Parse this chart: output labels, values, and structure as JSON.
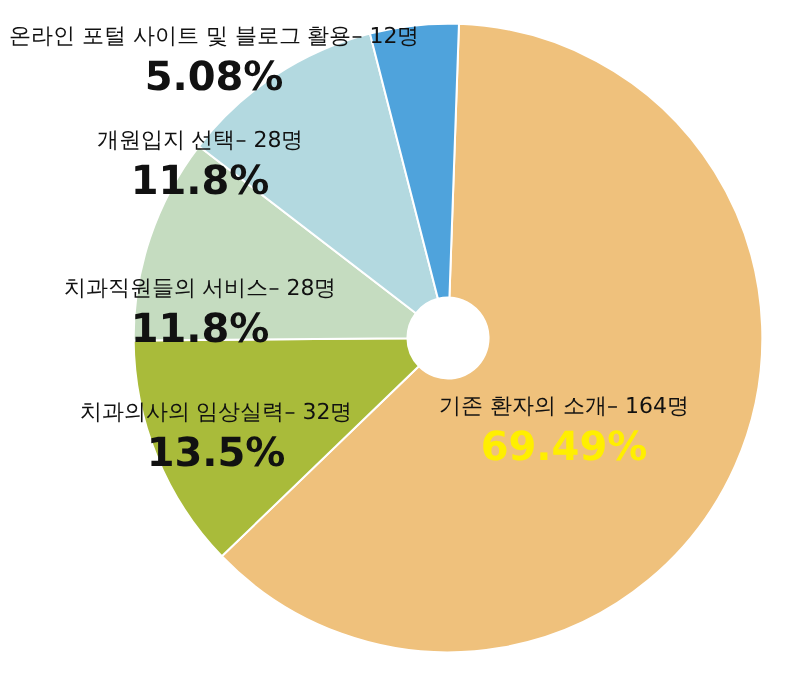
{
  "chart_data": {
    "type": "donut",
    "categories": [
      "기존 환자의 소개– 164명",
      "치과의사의 임상실력– 32명",
      "치과직원들의 서비스– 28명",
      "개원입지 선택– 28명",
      "온라인 포털 사이트 및 블로그 활용– 12명"
    ],
    "values": [
      69.49,
      13.5,
      11.8,
      11.8,
      5.08
    ],
    "value_labels": [
      "69.49%",
      "13.5%",
      "11.8%",
      "11.8%",
      "5.08%"
    ],
    "colors": [
      "#efc17c",
      "#a9bb3a",
      "#c5dcc0",
      "#b3d9e0",
      "#4fa3dc"
    ],
    "legend": false
  }
}
